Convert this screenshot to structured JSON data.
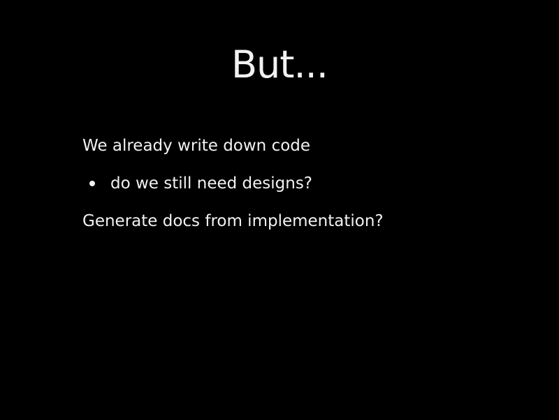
{
  "slide": {
    "title": "But...",
    "bullets": [
      {
        "level": 1,
        "text": "We already write down code"
      },
      {
        "level": 2,
        "text": "do we still need designs?"
      },
      {
        "level": 1,
        "text": "Generate docs from implementation?"
      }
    ]
  },
  "colors": {
    "background": "#000000",
    "text": "#f2f2f2"
  }
}
